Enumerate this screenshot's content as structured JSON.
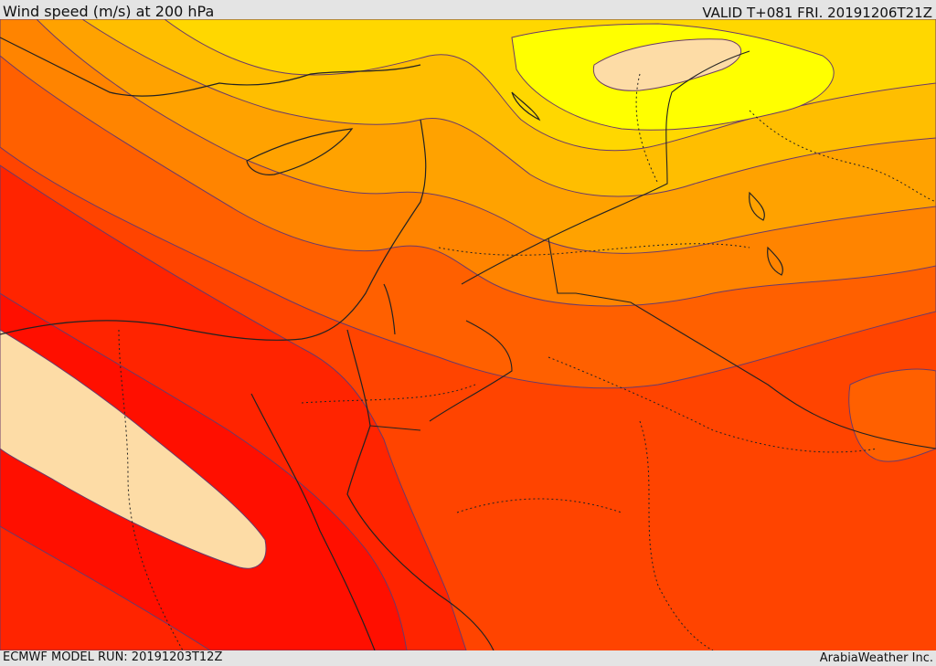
{
  "header": {
    "title": "Wind speed (m/s) at 200 hPa",
    "valid": "VALID T+081 FRI. 20191206T21Z"
  },
  "footer": {
    "model_run": "ECMWF MODEL RUN: 20191203T12Z",
    "credit": "ArabiaWeather Inc."
  },
  "map": {
    "colors": {
      "pale": "#fddca6",
      "yellow": "#ffff00",
      "amber": "#ffd700",
      "gold": "#ffbe00",
      "orange_light": "#ffa200",
      "orange": "#ff8400",
      "orange_dark": "#ff6000",
      "red_orange": "#ff4400",
      "red": "#ff2400",
      "red_bright": "#ff0f00",
      "contour_line": "#5a3a5a",
      "border_line": "#222222"
    }
  }
}
